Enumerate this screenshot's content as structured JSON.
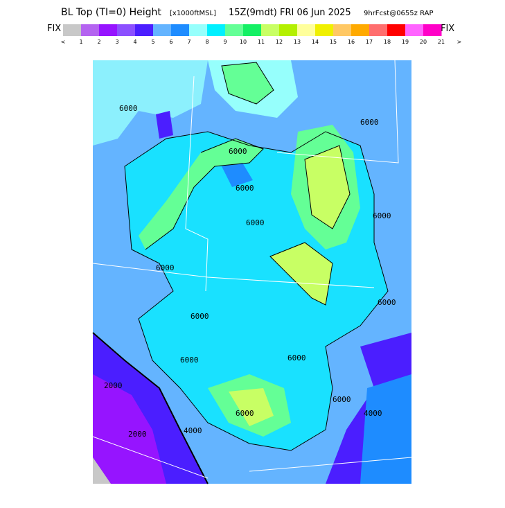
{
  "header": {
    "title": "BL Top (TI=0) Height",
    "units": "[x1000ftMSL]",
    "valid": "15Z(9mdt) FRI 06 Jun 2025",
    "forecast": "9hrFcst@0655z RAP"
  },
  "colorbar": {
    "left": "FIX",
    "right": "FIX",
    "labels": [
      "<",
      1,
      2,
      3,
      4,
      5,
      6,
      7,
      8,
      9,
      10,
      11,
      12,
      13,
      14,
      15,
      16,
      17,
      18,
      19,
      20,
      21,
      ">"
    ],
    "colors": [
      "#c8c8c8",
      "#b464f0",
      "#9614ff",
      "#8c50ff",
      "#4b1eff",
      "#64b4ff",
      "#1e8cff",
      "#96fffc",
      "#00f0ff",
      "#64ff96",
      "#14f064",
      "#c8ff64",
      "#b4f000",
      "#ffff9c",
      "#f0f000",
      "#ffc864",
      "#ffaa00",
      "#ff6e6e",
      "#ff0000",
      "#ff64ff",
      "#ff00c8"
    ]
  },
  "map": {
    "contour_labels": [
      "6000",
      "6000",
      "6000",
      "6000",
      "6000",
      "6000",
      "6000",
      "6000",
      "6000",
      "6000",
      "6000",
      "2000",
      "2000",
      "4000",
      "4000",
      "6000",
      "6000"
    ]
  }
}
